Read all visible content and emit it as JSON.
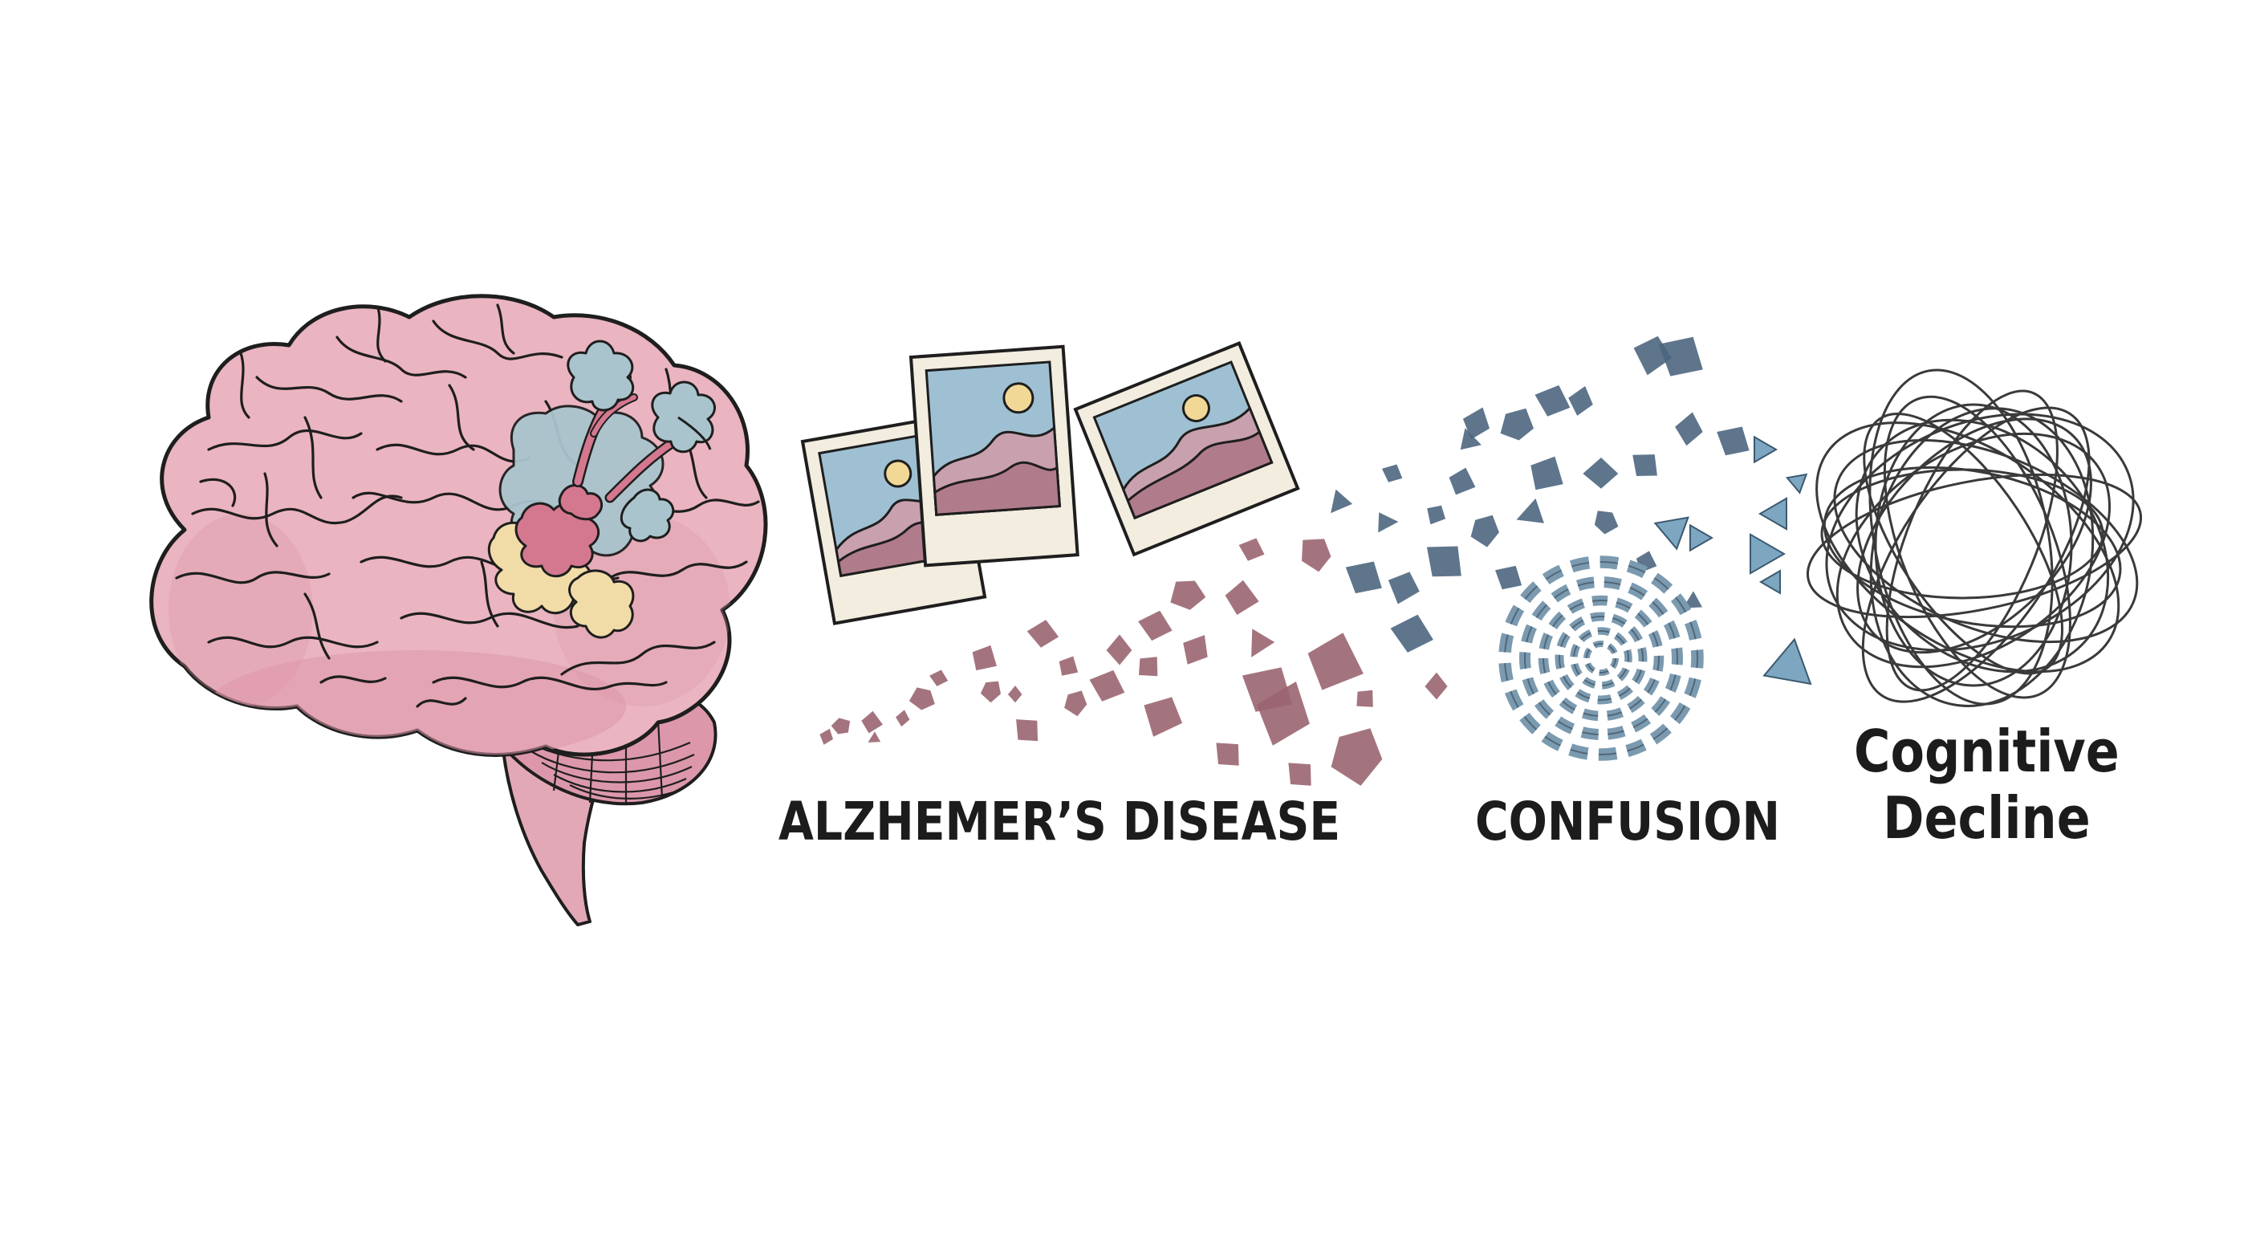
{
  "labels": {
    "alzheimers": "ALZHEMER’S DISEASE",
    "confusion": "CONFUSION",
    "cognitive_line1": "Cognitive",
    "cognitive_line2": "Decline"
  },
  "colors": {
    "brain_fill": "#eab4c0",
    "brain_shade": "#dc98aa",
    "outline": "#1e1e1e",
    "plaque_blue": "#a9c4cd",
    "plaque_yellow": "#f1dca8",
    "plaque_red": "#d4788f",
    "photo_sky": "#9fc0d2",
    "photo_hill": "#b07c8c",
    "photo_sun": "#f1d896",
    "fragment_rose": "#9a6570",
    "fragment_slate": "#4d6680",
    "fragment_blue": "#7da6c0",
    "swirl": "#7b9ab0",
    "tangle": "#3a3a3a"
  },
  "icons": [
    "brain-icon",
    "photo-icon",
    "fragment-icon",
    "spiral-icon",
    "tangle-icon"
  ]
}
